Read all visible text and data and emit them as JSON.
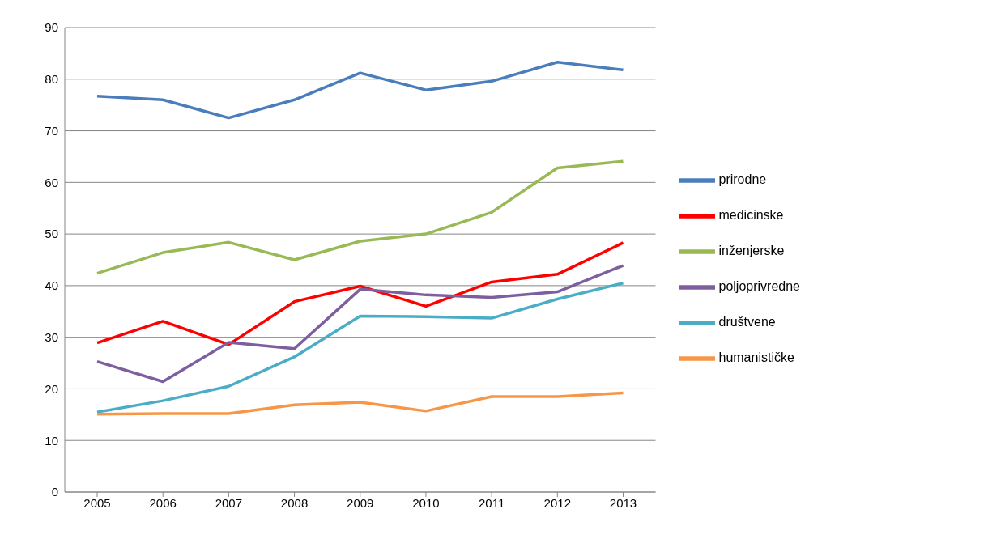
{
  "chart_data": {
    "type": "line",
    "categories": [
      "2005",
      "2006",
      "2007",
      "2008",
      "2009",
      "2010",
      "2011",
      "2012",
      "2013"
    ],
    "series": [
      {
        "name": "prirodne",
        "color": "#4a7ebb",
        "values": [
          76.7,
          76.0,
          72.5,
          76.0,
          81.2,
          77.9,
          79.6,
          83.3,
          81.8
        ]
      },
      {
        "name": "medicinske",
        "color": "#ff0000",
        "values": [
          28.9,
          33.1,
          28.6,
          36.9,
          39.9,
          36.0,
          40.7,
          42.2,
          48.3
        ]
      },
      {
        "name": "inženjerske",
        "color": "#98b954",
        "values": [
          42.4,
          46.4,
          48.4,
          45.0,
          48.6,
          50.0,
          54.2,
          62.8,
          64.1
        ]
      },
      {
        "name": "poljoprivredne",
        "color": "#7d5fa0",
        "values": [
          25.3,
          21.4,
          29.0,
          27.8,
          39.3,
          38.2,
          37.7,
          38.8,
          43.9
        ]
      },
      {
        "name": "društvene",
        "color": "#4bacc6",
        "values": [
          15.5,
          17.7,
          20.5,
          26.2,
          34.1,
          34.0,
          33.7,
          37.4,
          40.5
        ]
      },
      {
        "name": "humanističke",
        "color": "#f79646",
        "values": [
          15.1,
          15.2,
          15.2,
          16.9,
          17.4,
          15.7,
          18.5,
          18.5,
          19.2
        ]
      }
    ],
    "ylim": [
      0,
      90
    ],
    "yticks": [
      0,
      10,
      20,
      30,
      40,
      50,
      60,
      70,
      80,
      90
    ],
    "grid": "y",
    "legend": "right",
    "marker": "none",
    "line_style": "solid"
  }
}
